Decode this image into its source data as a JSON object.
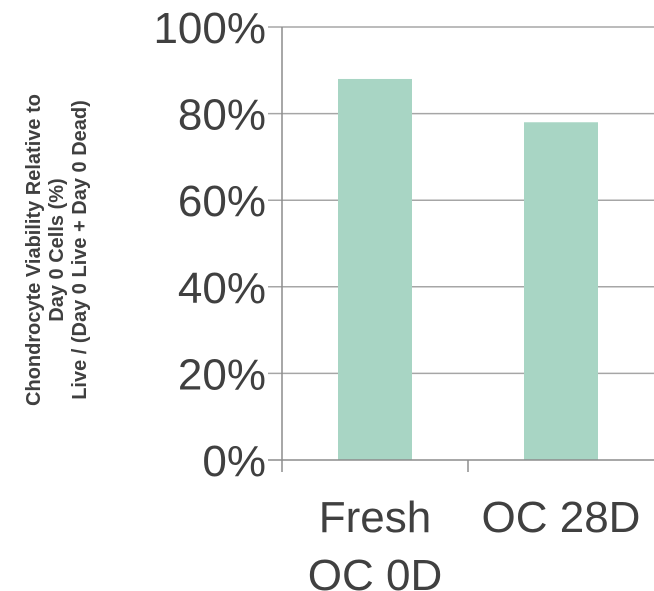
{
  "chart_data": {
    "type": "bar",
    "categories": [
      [
        "Fresh",
        "OC 0D"
      ],
      [
        "OC 28D"
      ]
    ],
    "values": [
      88,
      78
    ],
    "ylabel": [
      "Chondrocyte Viability Relative to",
      "Day 0 Cells (%)",
      "Live / (Day 0 Live + Day 0 Dead)"
    ],
    "ylim": [
      0,
      100
    ],
    "yticks": [
      "0%",
      "20%",
      "40%",
      "60%",
      "80%",
      "100%"
    ],
    "grid": true,
    "bar_color": "#a8d5c4"
  }
}
